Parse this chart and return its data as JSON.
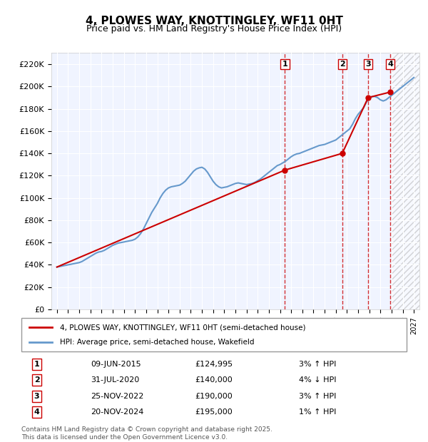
{
  "title": "4, PLOWES WAY, KNOTTINGLEY, WF11 0HT",
  "subtitle": "Price paid vs. HM Land Registry's House Price Index (HPI)",
  "legend_line1": "4, PLOWES WAY, KNOTTINGLEY, WF11 0HT (semi-detached house)",
  "legend_line2": "HPI: Average price, semi-detached house, Wakefield",
  "footer": "Contains HM Land Registry data © Crown copyright and database right 2025.\nThis data is licensed under the Open Government Licence v3.0.",
  "xlim": [
    1994.5,
    2027.5
  ],
  "ylim": [
    0,
    230000
  ],
  "yticks": [
    0,
    20000,
    40000,
    60000,
    80000,
    100000,
    120000,
    140000,
    160000,
    180000,
    200000,
    220000
  ],
  "ytick_labels": [
    "£0",
    "£20K",
    "£40K",
    "£60K",
    "£80K",
    "£100K",
    "£120K",
    "£140K",
    "£160K",
    "£180K",
    "£200K",
    "£220K"
  ],
  "xticks": [
    1995,
    1996,
    1997,
    1998,
    1999,
    2000,
    2001,
    2002,
    2003,
    2004,
    2005,
    2006,
    2007,
    2008,
    2009,
    2010,
    2011,
    2012,
    2013,
    2014,
    2015,
    2016,
    2017,
    2018,
    2019,
    2020,
    2021,
    2022,
    2023,
    2024,
    2025,
    2026,
    2027
  ],
  "hpi_color": "#6699cc",
  "price_color": "#cc0000",
  "sale_color": "#cc0000",
  "hatch_start": 2025.0,
  "sales": [
    {
      "num": 1,
      "date": "09-JUN-2015",
      "x": 2015.44,
      "price": 124995,
      "pct": "3%",
      "dir": "↑"
    },
    {
      "num": 2,
      "date": "31-JUL-2020",
      "x": 2020.58,
      "price": 140000,
      "pct": "4%",
      "dir": "↓"
    },
    {
      "num": 3,
      "date": "25-NOV-2022",
      "x": 2022.9,
      "price": 190000,
      "pct": "3%",
      "dir": "↑"
    },
    {
      "num": 4,
      "date": "20-NOV-2024",
      "x": 2024.89,
      "price": 195000,
      "pct": "1%",
      "dir": "↑"
    }
  ],
  "hpi_data": {
    "x": [
      1995,
      1995.25,
      1995.5,
      1995.75,
      1996,
      1996.25,
      1996.5,
      1996.75,
      1997,
      1997.25,
      1997.5,
      1997.75,
      1998,
      1998.25,
      1998.5,
      1998.75,
      1999,
      1999.25,
      1999.5,
      1999.75,
      2000,
      2000.25,
      2000.5,
      2000.75,
      2001,
      2001.25,
      2001.5,
      2001.75,
      2002,
      2002.25,
      2002.5,
      2002.75,
      2003,
      2003.25,
      2003.5,
      2003.75,
      2004,
      2004.25,
      2004.5,
      2004.75,
      2005,
      2005.25,
      2005.5,
      2005.75,
      2006,
      2006.25,
      2006.5,
      2006.75,
      2007,
      2007.25,
      2007.5,
      2007.75,
      2008,
      2008.25,
      2008.5,
      2008.75,
      2009,
      2009.25,
      2009.5,
      2009.75,
      2010,
      2010.25,
      2010.5,
      2010.75,
      2011,
      2011.25,
      2011.5,
      2011.75,
      2012,
      2012.25,
      2012.5,
      2012.75,
      2013,
      2013.25,
      2013.5,
      2013.75,
      2014,
      2014.25,
      2014.5,
      2014.75,
      2015,
      2015.25,
      2015.5,
      2015.75,
      2016,
      2016.25,
      2016.5,
      2016.75,
      2017,
      2017.25,
      2017.5,
      2017.75,
      2018,
      2018.25,
      2018.5,
      2018.75,
      2019,
      2019.25,
      2019.5,
      2019.75,
      2020,
      2020.25,
      2020.5,
      2020.75,
      2021,
      2021.25,
      2021.5,
      2021.75,
      2022,
      2022.25,
      2022.5,
      2022.75,
      2023,
      2023.25,
      2023.5,
      2023.75,
      2024,
      2024.25,
      2024.5,
      2024.75,
      2025,
      2025.25,
      2025.5,
      2025.75,
      2026,
      2026.25,
      2026.5,
      2026.75,
      2027
    ],
    "y": [
      38000,
      38500,
      39000,
      39500,
      40000,
      40500,
      41000,
      41500,
      42000,
      43000,
      44500,
      46000,
      47500,
      49000,
      50500,
      51500,
      52000,
      53000,
      54500,
      56000,
      57500,
      58500,
      59500,
      60000,
      60500,
      61000,
      61500,
      62000,
      63000,
      65000,
      68000,
      72000,
      77000,
      82000,
      87000,
      91000,
      95000,
      100000,
      104000,
      107000,
      109000,
      110000,
      110500,
      111000,
      111500,
      113000,
      115000,
      118000,
      121000,
      124000,
      126000,
      127000,
      127500,
      126000,
      123000,
      119000,
      115000,
      112000,
      110000,
      109000,
      109500,
      110000,
      111000,
      112000,
      113000,
      113500,
      113000,
      112500,
      112000,
      112500,
      113000,
      114000,
      115500,
      117000,
      119000,
      121000,
      123000,
      125000,
      127000,
      129000,
      130000,
      131500,
      133000,
      135000,
      137000,
      138500,
      139500,
      140000,
      141000,
      142000,
      143000,
      144000,
      145000,
      146000,
      147000,
      147500,
      148000,
      149000,
      150000,
      151000,
      152000,
      154000,
      156000,
      158000,
      160000,
      162000,
      166000,
      171000,
      175000,
      178000,
      181000,
      186000,
      189000,
      191000,
      191000,
      190000,
      188000,
      187000,
      188000,
      190000,
      192000,
      194000,
      196000,
      198000,
      200000,
      202000,
      204000,
      206000,
      208000
    ]
  },
  "price_data": {
    "x": [
      1995.0,
      2015.44,
      2020.58,
      2022.9,
      2024.89
    ],
    "y": [
      38000,
      124995,
      140000,
      190000,
      195000
    ]
  }
}
